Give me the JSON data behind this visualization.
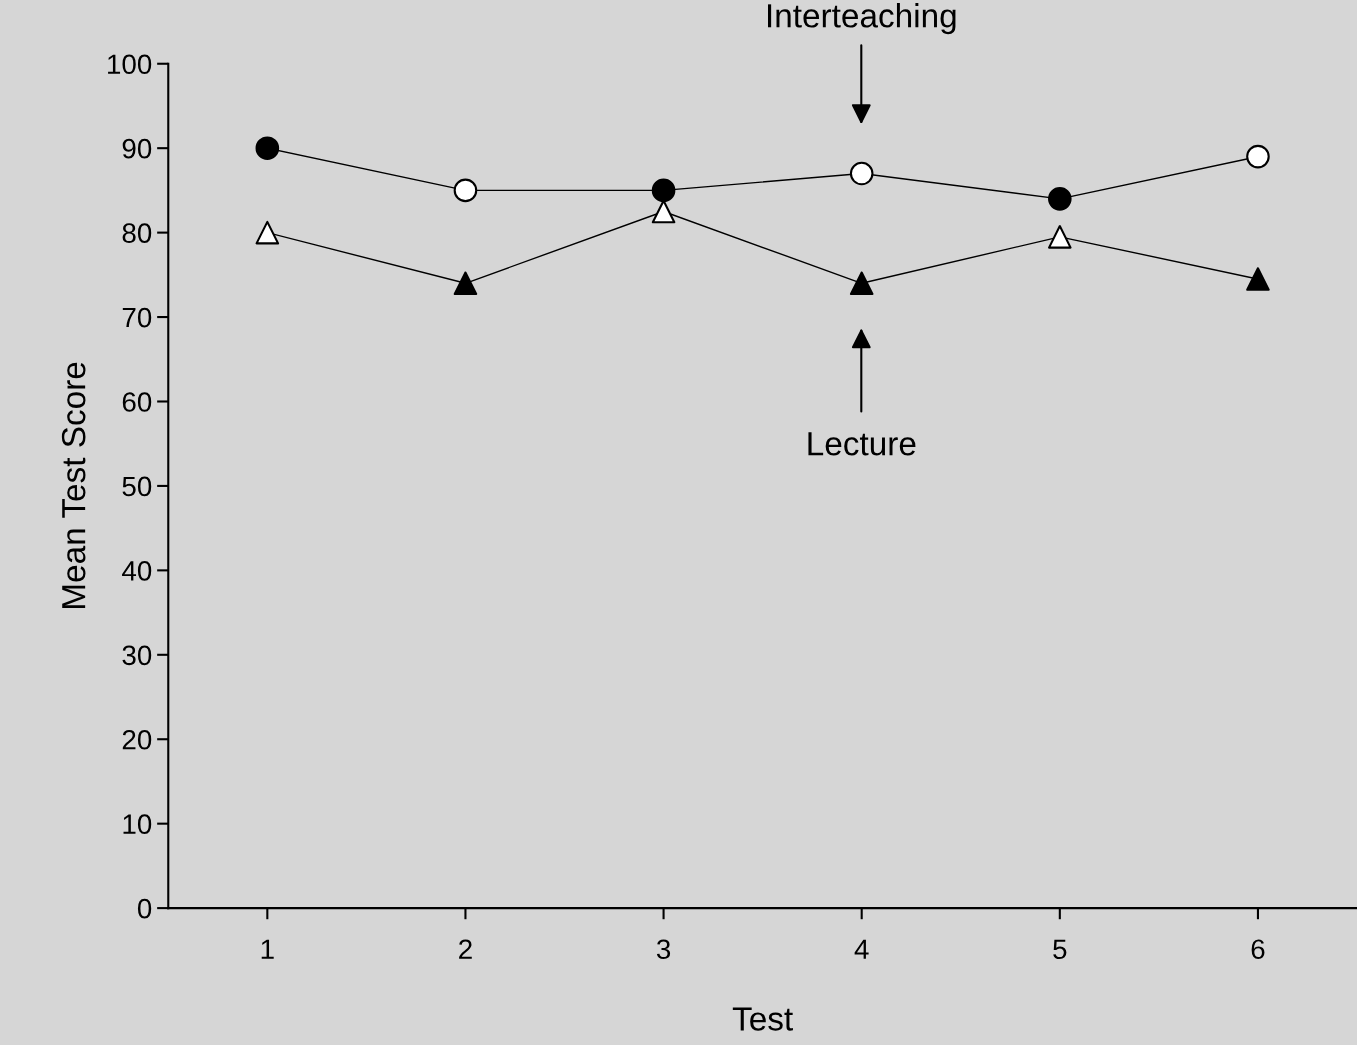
{
  "chart_data": {
    "type": "line",
    "xlabel": "Test",
    "ylabel": "Mean Test Score",
    "x": [
      1,
      2,
      3,
      4,
      5,
      6
    ],
    "series": [
      {
        "color": "#000000",
        "marker": "circle",
        "colors": [
          "#000000",
          "#ffffff",
          "#000000",
          "#ffffff",
          "#000000",
          "#ffffff"
        ],
        "values": [
          90,
          85,
          85,
          87,
          84,
          89
        ]
      },
      {
        "color": "#000000",
        "marker": "triangle",
        "colors": [
          "#ffffff",
          "#000000",
          "#ffffff",
          "#000000",
          "#ffffff",
          "#000000"
        ],
        "values": [
          80,
          74,
          82.5,
          74,
          79.5,
          74.5
        ]
      }
    ],
    "annotations": [
      "Interteaching",
      "Lecture"
    ],
    "xlim": [
      0.5,
      6.5
    ],
    "xticks": [
      1,
      2,
      3,
      4,
      5,
      6
    ],
    "ylim": [
      0,
      100
    ],
    "yticks": [
      0,
      10,
      20,
      30,
      40,
      50,
      60,
      70,
      80,
      90,
      100
    ],
    "grid": false,
    "line_style": "solid"
  }
}
